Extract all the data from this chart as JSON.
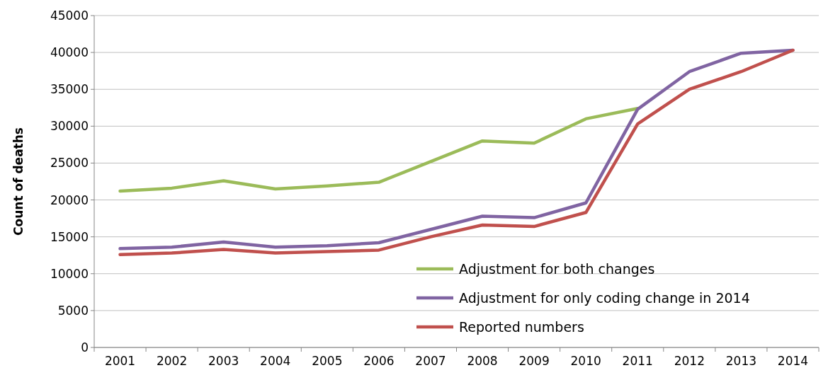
{
  "chart_data": {
    "type": "line",
    "ylabel": "Count of deaths",
    "categories": [
      "2001",
      "2002",
      "2003",
      "2004",
      "2005",
      "2006",
      "2007",
      "2008",
      "2009",
      "2010",
      "2011",
      "2012",
      "2013",
      "2014"
    ],
    "series": [
      {
        "name": "Adjustment for both changes",
        "color": "#9bbb59",
        "values": [
          21200,
          21600,
          22600,
          21500,
          21900,
          22400,
          25200,
          28000,
          27700,
          31000,
          32400,
          null,
          null,
          null
        ]
      },
      {
        "name": "Adjustment for only coding change in 2014",
        "color": "#8064a2",
        "values": [
          13400,
          13600,
          14300,
          13600,
          13800,
          14200,
          16000,
          17800,
          17600,
          19600,
          32300,
          37400,
          39900,
          40300
        ]
      },
      {
        "name": "Reported numbers",
        "color": "#c0504d",
        "values": [
          12600,
          12800,
          13300,
          12800,
          13000,
          13200,
          15000,
          16600,
          16400,
          18300,
          30300,
          35000,
          37400,
          40300
        ]
      }
    ],
    "ylim": [
      0,
      45000
    ],
    "yticks": [
      0,
      5000,
      10000,
      15000,
      20000,
      25000,
      30000,
      35000,
      40000,
      45000
    ],
    "grid": "y",
    "legend": "bottom right",
    "marker": "none",
    "line_style": "solid"
  }
}
